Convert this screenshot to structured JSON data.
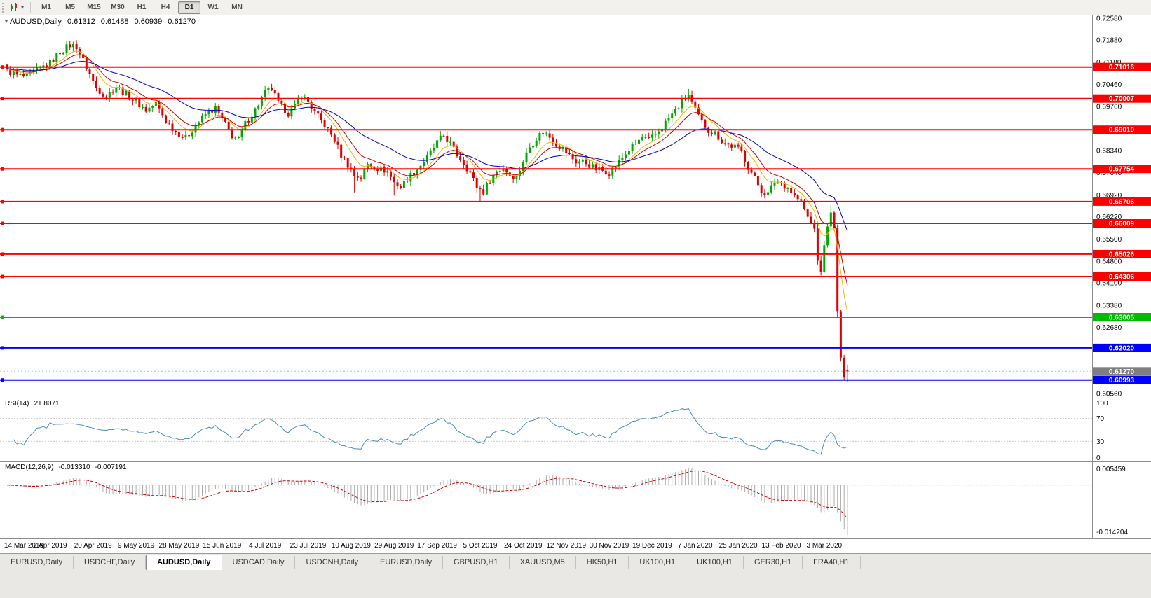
{
  "toolbar": {
    "timeframe_buttons": [
      "M1",
      "M5",
      "M15",
      "M30",
      "H1",
      "H4",
      "D1",
      "W1",
      "MN"
    ],
    "active_timeframe": "D1"
  },
  "icons": {
    "chart_type": "candlestick-chart-icon",
    "caret_down": "▾"
  },
  "main_chart": {
    "title_symbol": "AUDUSD,Daily",
    "ohlc": {
      "open": "0.61312",
      "high": "0.61488",
      "low": "0.60939",
      "close": "0.61270"
    },
    "y_axis_ticks": [
      "0.72580",
      "0.71880",
      "0.71180",
      "0.70460",
      "0.69760",
      "0.69060",
      "0.68340",
      "0.67640",
      "0.66920",
      "0.66220",
      "0.65500",
      "0.64800",
      "0.64100",
      "0.63380",
      "0.62680",
      "0.61960",
      "0.61260",
      "0.60560"
    ],
    "price_levels": [
      {
        "price": 0.71016,
        "label": "0.71016",
        "color": "#FF0000",
        "kind": "resistance"
      },
      {
        "price": 0.70007,
        "label": "0.70007",
        "color": "#FF0000",
        "kind": "resistance"
      },
      {
        "price": 0.6901,
        "label": "0.69010",
        "color": "#FF0000",
        "kind": "resistance"
      },
      {
        "price": 0.67754,
        "label": "0.67754",
        "color": "#FF0000",
        "kind": "resistance"
      },
      {
        "price": 0.66706,
        "label": "0.66706",
        "color": "#FF0000",
        "kind": "resistance"
      },
      {
        "price": 0.66009,
        "label": "0.66009",
        "color": "#FF0000",
        "kind": "resistance"
      },
      {
        "price": 0.65026,
        "label": "0.65026",
        "color": "#FF0000",
        "kind": "resistance"
      },
      {
        "price": 0.64306,
        "label": "0.64306",
        "color": "#FF0000",
        "kind": "resistance"
      },
      {
        "price": 0.63005,
        "label": "0.63005",
        "color": "#00BB00",
        "kind": "support"
      },
      {
        "price": 0.6202,
        "label": "0.62020",
        "color": "#0000FF",
        "kind": "support"
      },
      {
        "price": 0.60993,
        "label": "0.60993",
        "color": "#0000FF",
        "kind": "support"
      }
    ],
    "current_price": {
      "value": 0.6127,
      "label": "0.61270",
      "box_color": "#7F7F7F"
    },
    "x_axis_labels": [
      "14 Mar 2019",
      "2 Apr 2019",
      "20 Apr 2019",
      "9 May 2019",
      "28 May 2019",
      "15 Jun 2019",
      "4 Jul 2019",
      "23 Jul 2019",
      "10 Aug 2019",
      "29 Aug 2019",
      "17 Sep 2019",
      "5 Oct 2019",
      "24 Oct 2019",
      "12 Nov 2019",
      "30 Nov 2019",
      "19 Dec 2019",
      "7 Jan 2020",
      "25 Jan 2020",
      "13 Feb 2020",
      "3 Mar 2020"
    ]
  },
  "rsi_panel": {
    "name": "RSI(14)",
    "value": "21.8071",
    "scale": [
      "100",
      "70",
      "30",
      "0"
    ],
    "levels": [
      70,
      30
    ]
  },
  "macd_panel": {
    "name": "MACD(12,26,9)",
    "main_value": "-0.013310",
    "signal_value": "-0.007191",
    "scale_top": "0.005459",
    "scale_bottom": "-0.014204"
  },
  "tabs": [
    "EURUSD,Daily",
    "USDCHF,Daily",
    "AUDUSD,Daily",
    "USDCAD,Daily",
    "USDCNH,Daily",
    "EURUSD,Daily",
    "GBPUSD,H1",
    "XAUUSD,M5",
    "HK50,H1",
    "UK100,H1",
    "UK100,H1",
    "GER30,H1",
    "FRA40,H1"
  ],
  "active_tab_index": 2,
  "colors": {
    "bull": "#00A800",
    "bear": "#DE0000",
    "rsi_line": "#4A8BC2",
    "macd_hist": "#ABABAB",
    "macd_signal": "#D00000",
    "level_red": "#FF0000",
    "level_green": "#00BB00",
    "level_blue": "#0000FF",
    "current_price_box": "#7F7F7F"
  },
  "chart_data": {
    "type": "candlestick",
    "symbol": "AUDUSD",
    "timeframe": "Daily",
    "title": "AUDUSD,Daily",
    "y_range": [
      0.6056,
      0.7258
    ],
    "candle_count": 255,
    "noise_amplitude": 0.0011,
    "last_candle_ohlc": [
      0.61312,
      0.61488,
      0.60939,
      0.6127
    ],
    "close_anchors": [
      [
        0,
        0.709
      ],
      [
        3,
        0.7075
      ],
      [
        6,
        0.7068
      ],
      [
        9,
        0.7092
      ],
      [
        13,
        0.7115
      ],
      [
        16,
        0.715
      ],
      [
        19,
        0.7172
      ],
      [
        21,
        0.7168
      ],
      [
        24,
        0.71
      ],
      [
        27,
        0.7035
      ],
      [
        30,
        0.7008
      ],
      [
        33,
        0.704
      ],
      [
        36,
        0.7015
      ],
      [
        39,
        0.699
      ],
      [
        42,
        0.6963
      ],
      [
        45,
        0.6985
      ],
      [
        48,
        0.693
      ],
      [
        51,
        0.6895
      ],
      [
        54,
        0.6873
      ],
      [
        57,
        0.6915
      ],
      [
        60,
        0.695
      ],
      [
        63,
        0.697
      ],
      [
        65,
        0.6935
      ],
      [
        68,
        0.6882
      ],
      [
        70,
        0.6868
      ],
      [
        72,
        0.692
      ],
      [
        75,
        0.6965
      ],
      [
        78,
        0.702
      ],
      [
        80,
        0.7032
      ],
      [
        82,
        0.6985
      ],
      [
        85,
        0.6953
      ],
      [
        87,
        0.6975
      ],
      [
        89,
        0.7012
      ],
      [
        91,
        0.699
      ],
      [
        93,
        0.6955
      ],
      [
        95,
        0.693
      ],
      [
        97,
        0.69
      ],
      [
        99,
        0.6868
      ],
      [
        101,
        0.682
      ],
      [
        103,
        0.6788
      ],
      [
        105,
        0.6755
      ],
      [
        107,
        0.6748
      ],
      [
        109,
        0.679
      ],
      [
        112,
        0.6778
      ],
      [
        115,
        0.6768
      ],
      [
        117,
        0.6732
      ],
      [
        119,
        0.6718
      ],
      [
        121,
        0.6745
      ],
      [
        124,
        0.6775
      ],
      [
        127,
        0.6812
      ],
      [
        130,
        0.686
      ],
      [
        132,
        0.6882
      ],
      [
        134,
        0.6855
      ],
      [
        136,
        0.682
      ],
      [
        138,
        0.6795
      ],
      [
        140,
        0.6763
      ],
      [
        142,
        0.6718
      ],
      [
        144,
        0.6702
      ],
      [
        146,
        0.674
      ],
      [
        148,
        0.6768
      ],
      [
        150,
        0.6778
      ],
      [
        152,
        0.6757
      ],
      [
        154,
        0.6748
      ],
      [
        156,
        0.68
      ],
      [
        158,
        0.6846
      ],
      [
        160,
        0.6875
      ],
      [
        162,
        0.6895
      ],
      [
        164,
        0.6878
      ],
      [
        166,
        0.6855
      ],
      [
        168,
        0.684
      ],
      [
        170,
        0.6818
      ],
      [
        172,
        0.6798
      ],
      [
        174,
        0.68
      ],
      [
        176,
        0.6788
      ],
      [
        178,
        0.6775
      ],
      [
        180,
        0.677
      ],
      [
        182,
        0.6765
      ],
      [
        184,
        0.6785
      ],
      [
        186,
        0.6812
      ],
      [
        188,
        0.6836
      ],
      [
        190,
        0.6856
      ],
      [
        192,
        0.6876
      ],
      [
        194,
        0.6866
      ],
      [
        196,
        0.6886
      ],
      [
        198,
        0.691
      ],
      [
        200,
        0.6938
      ],
      [
        202,
        0.6962
      ],
      [
        204,
        0.699
      ],
      [
        206,
        0.7012
      ],
      [
        208,
        0.6962
      ],
      [
        210,
        0.6925
      ],
      [
        212,
        0.69
      ],
      [
        214,
        0.689
      ],
      [
        216,
        0.6865
      ],
      [
        218,
        0.6852
      ],
      [
        220,
        0.6846
      ],
      [
        222,
        0.683
      ],
      [
        224,
        0.6782
      ],
      [
        226,
        0.6745
      ],
      [
        228,
        0.6705
      ],
      [
        230,
        0.6695
      ],
      [
        232,
        0.6735
      ],
      [
        234,
        0.673
      ],
      [
        236,
        0.6715
      ],
      [
        238,
        0.669
      ],
      [
        240,
        0.6668
      ],
      [
        242,
        0.662
      ],
      [
        244,
        0.6585
      ],
      [
        245,
        0.648
      ],
      [
        246,
        0.6445
      ],
      [
        247,
        0.653
      ],
      [
        248,
        0.6592
      ],
      [
        249,
        0.6635
      ],
      [
        250,
        0.6585
      ],
      [
        251,
        0.632
      ],
      [
        252,
        0.617
      ],
      [
        253,
        0.6108
      ],
      [
        254,
        0.6127
      ]
    ],
    "wick_overrides": {
      "19": {
        "high": 0.7185
      },
      "78": {
        "high": 0.7041
      },
      "105": {
        "low": 0.67
      },
      "117": {
        "low": 0.669
      },
      "143": {
        "low": 0.667
      },
      "206": {
        "high": 0.7032
      },
      "246": {
        "low": 0.6434
      },
      "249": {
        "high": 0.666
      },
      "251": {
        "low": 0.63
      }
    },
    "moving_averages": [
      {
        "name": "fast",
        "period": 8,
        "color": "#E6B800",
        "width": 1
      },
      {
        "name": "medium",
        "period": 13,
        "color": "#CC0000",
        "width": 1
      },
      {
        "name": "slow",
        "period": 34,
        "color": "#0000CC",
        "width": 1
      }
    ],
    "indicators": [
      {
        "name": "RSI",
        "params": [
          14
        ],
        "current": 21.8071
      },
      {
        "name": "MACD",
        "params": [
          12,
          26,
          9
        ],
        "current_main": -0.01331,
        "current_signal": -0.007191
      }
    ]
  }
}
